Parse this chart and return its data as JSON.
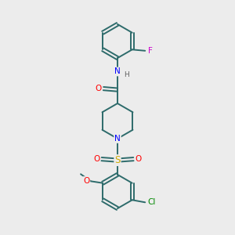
{
  "background_color": "#ececec",
  "bond_color": "#2d6b6b",
  "atom_colors": {
    "O": "#ff0000",
    "N": "#0000ff",
    "S": "#ccaa00",
    "F": "#cc00cc",
    "Cl": "#008800",
    "H": "#606060"
  },
  "figsize": [
    3.0,
    3.0
  ],
  "dpi": 100,
  "xlim": [
    0,
    10
  ],
  "ylim": [
    0,
    10
  ],
  "ring_r": 0.72,
  "bond_lw": 1.4,
  "font_size": 7
}
